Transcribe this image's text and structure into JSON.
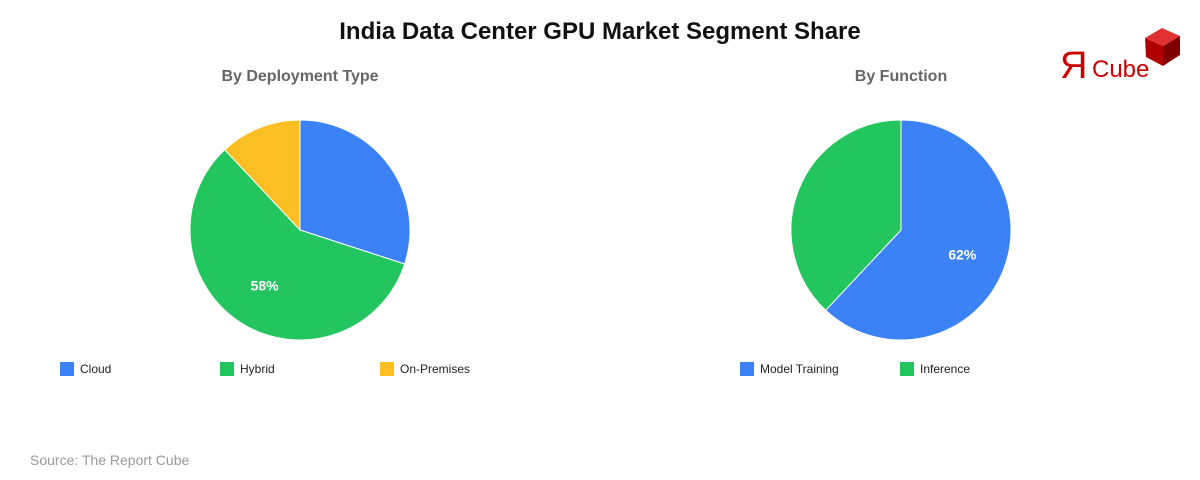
{
  "title": "India Data Center GPU Market Segment Share",
  "source": "Source: The Report Cube",
  "logo_text": "ЯCube",
  "chart_data": [
    {
      "type": "pie",
      "title": "By Deployment Type",
      "categories": [
        "Cloud",
        "Hybrid",
        "On-Premises"
      ],
      "values": [
        30,
        58,
        12
      ],
      "colors": [
        "#3b82f6",
        "#22c55e",
        "#fbbf24"
      ],
      "data_labels": [
        "",
        "58%",
        ""
      ],
      "legend": "bottom"
    },
    {
      "type": "pie",
      "title": "By Function",
      "categories": [
        "Model Training",
        "Inference"
      ],
      "values": [
        62,
        38
      ],
      "colors": [
        "#3b82f6",
        "#22c55e"
      ],
      "data_labels": [
        "62%",
        ""
      ],
      "legend": "bottom"
    }
  ]
}
